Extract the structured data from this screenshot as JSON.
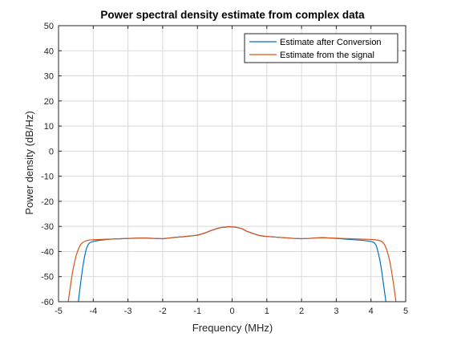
{
  "chart_data": {
    "type": "line",
    "title": "Power spectral density estimate from complex data",
    "xlabel": "Frequency (MHz)",
    "ylabel": "Power density (dB/Hz)",
    "xlim": [
      -5,
      5
    ],
    "ylim": [
      -60,
      50
    ],
    "xticks": [
      -5,
      -4,
      -3,
      -2,
      -1,
      0,
      1,
      2,
      3,
      4,
      5
    ],
    "yticks": [
      -60,
      -50,
      -40,
      -30,
      -20,
      -10,
      0,
      10,
      20,
      30,
      40,
      50
    ],
    "xtick_labels": [
      "-5",
      "-4",
      "-3",
      "-2",
      "-1",
      "0",
      "1",
      "2",
      "3",
      "4",
      "5"
    ],
    "ytick_labels": [
      "-60",
      "-50",
      "-40",
      "-30",
      "-20",
      "-10",
      "0",
      "10",
      "20",
      "30",
      "40",
      "50"
    ],
    "grid": true,
    "legend_position": "top-right",
    "colors": {
      "series1": "#0072BD",
      "series2": "#D95319",
      "grid": "#d9d9d9",
      "axis": "#262626"
    },
    "series": [
      {
        "name": "Estimate after Conversion",
        "color": "#0072BD",
        "x": [
          -4.43,
          -4.35,
          -4.3,
          -4.25,
          -4.2,
          -4.15,
          -4.1,
          -4.05,
          -4.0,
          -3.9,
          -3.8,
          -3.6,
          -3.4,
          -3.2,
          -3.0,
          -2.8,
          -2.6,
          -2.4,
          -2.2,
          -2.0,
          -1.8,
          -1.6,
          -1.4,
          -1.2,
          -1.0,
          -0.8,
          -0.6,
          -0.4,
          -0.3,
          -0.2,
          -0.1,
          0.0,
          0.1,
          0.2,
          0.3,
          0.4,
          0.6,
          0.8,
          1.0,
          1.2,
          1.4,
          1.6,
          1.8,
          2.0,
          2.2,
          2.4,
          2.6,
          2.8,
          3.0,
          3.2,
          3.4,
          3.6,
          3.8,
          3.9,
          4.0,
          4.05,
          4.1,
          4.15,
          4.2,
          4.25,
          4.3,
          4.35,
          4.43
        ],
        "y": [
          -60,
          -51,
          -46,
          -42,
          -39,
          -37.3,
          -36.5,
          -36.2,
          -36.0,
          -35.7,
          -35.5,
          -35.2,
          -35.0,
          -34.9,
          -34.8,
          -34.7,
          -34.6,
          -34.7,
          -34.8,
          -34.9,
          -34.6,
          -34.3,
          -34.1,
          -33.8,
          -33.5,
          -32.7,
          -31.6,
          -30.7,
          -30.4,
          -30.3,
          -30.1,
          -30.2,
          -30.3,
          -30.6,
          -31.0,
          -31.8,
          -32.8,
          -33.7,
          -34.0,
          -34.2,
          -34.4,
          -34.6,
          -34.8,
          -34.9,
          -34.8,
          -34.6,
          -34.5,
          -34.6,
          -34.8,
          -35.0,
          -35.2,
          -35.4,
          -35.6,
          -35.8,
          -36.0,
          -36.2,
          -36.6,
          -37.5,
          -40,
          -43,
          -47,
          -52,
          -60
        ]
      },
      {
        "name": "Estimate from the signal",
        "color": "#D95319",
        "x": [
          -4.72,
          -4.65,
          -4.6,
          -4.55,
          -4.5,
          -4.45,
          -4.4,
          -4.35,
          -4.3,
          -4.2,
          -4.1,
          -4.0,
          -3.8,
          -3.6,
          -3.4,
          -3.2,
          -3.0,
          -2.8,
          -2.6,
          -2.4,
          -2.2,
          -2.0,
          -1.8,
          -1.6,
          -1.4,
          -1.2,
          -1.0,
          -0.8,
          -0.6,
          -0.4,
          -0.3,
          -0.2,
          -0.1,
          0.0,
          0.1,
          0.2,
          0.3,
          0.4,
          0.6,
          0.8,
          1.0,
          1.2,
          1.4,
          1.6,
          1.8,
          2.0,
          2.2,
          2.4,
          2.6,
          2.8,
          3.0,
          3.2,
          3.4,
          3.6,
          3.8,
          4.0,
          4.1,
          4.2,
          4.3,
          4.35,
          4.4,
          4.45,
          4.5,
          4.55,
          4.6,
          4.65,
          4.72
        ],
        "y": [
          -60,
          -53,
          -48.5,
          -45,
          -42,
          -39.8,
          -38.2,
          -37.0,
          -36.3,
          -35.7,
          -35.4,
          -35.3,
          -35.2,
          -35.1,
          -35.0,
          -34.9,
          -34.8,
          -34.7,
          -34.6,
          -34.7,
          -34.8,
          -34.9,
          -34.6,
          -34.3,
          -34.1,
          -33.8,
          -33.5,
          -32.7,
          -31.6,
          -30.7,
          -30.4,
          -30.3,
          -30.1,
          -30.2,
          -30.3,
          -30.6,
          -31.0,
          -31.8,
          -32.8,
          -33.7,
          -34.0,
          -34.2,
          -34.4,
          -34.6,
          -34.8,
          -34.9,
          -34.8,
          -34.6,
          -34.5,
          -34.6,
          -34.7,
          -34.8,
          -34.9,
          -35.0,
          -35.1,
          -35.2,
          -35.3,
          -35.5,
          -35.9,
          -36.5,
          -37.5,
          -39.2,
          -41.5,
          -44.5,
          -48.5,
          -53,
          -60
        ]
      }
    ]
  }
}
